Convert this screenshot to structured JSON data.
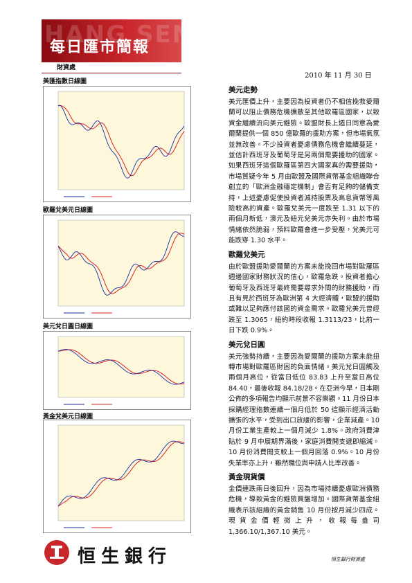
{
  "header": {
    "watermark": "HANG SENG",
    "title": "每日匯市簡報",
    "department": "財資處"
  },
  "date": "2010 年 11 月 30 日",
  "charts": [
    {
      "title": "美匯指數日線圖"
    },
    {
      "title": "歐羅兌美元日線圖"
    },
    {
      "title": "美元兌日圓日線圖"
    },
    {
      "title": "黃金兌美元日線圖"
    }
  ],
  "sections": [
    {
      "heading": "美元走勢",
      "body": "美元匯價上升，主要因為投資者仍不相信挽救愛爾蘭可以阻止債務危機擴散至其他歐羅區國家，以致資金繼續流向美元避險。歐盟財長上週日同意為愛爾蘭提供一個 850 億歐羅的援助方案，但市場氣氛並無改善。不少投資者憂慮債務危機會繼續蔓延，並估計西班牙及葡萄牙是另兩個需要援助的國家。如果西班牙這個歐羅區第四大國家真的需要援助，市場質疑今年 5 月由歐盟及國際貨幣基金組織聯合創立的「歐洲金融穩定機制」會否有足夠的儲備支持，上述憂慮促使投資者減持股票及高息貨幣等風險較高的資產。歐羅兌美元一度跌至 1.31 以下的兩個月新低，澳元及紐元兌美元亦失利。由於市場情緒依然脆弱，預料歐羅會進一步受壓，兌美元可能跌穿 1.30 水平。"
    },
    {
      "heading": "歐羅兌美元",
      "body": "由於歐盟援助愛爾蘭的方案未能挽回市場對歐羅區週邊國家財務狀況的信心，歐羅急跌。投資者擔心葡萄牙及西班牙最終需要尋求外間的財務援助，而且有見於西班牙為歐洲第 4 大經濟體，歐盟的援助或難以足夠應付該國的資金需求。歐羅兌美元曾經跌至 1.3065，紐約時段收報 1.3113/23，比前一日下跌 0.9%。"
    },
    {
      "heading": "美元兌日圓",
      "body": "美元強勢持續，主要因為愛爾蘭的援助方案未能扭轉市場對歐羅區財困的負面情緒。美元兌日圓觸及兩個月高位，從當日低位 83.83 上升至當日高位 84.40，最後收報 84.18/28。在亞洲今早，日本剛公佈的多項報告均顯示前景不容樂觀。11 月份日本採購經理指數連續一個月低於 50 這顯示經濟活動擴張的水平，受到出口放緩的影響，企業減產。10 月份工業生產較上一個月減少 1.8%。政府消費津貼於 9 月中展期界滿後，家庭消費開支遞即縮減。10 月份消費開支較上一個月回落 0.9%。10 月份失業率亦上升，雖然職位與申請人比率改善。"
    },
    {
      "heading": "黃金現貨價",
      "body": "金價連跌兩日後回升，因為市場持續憂慮歐洲債務危機，導致黃金的避險買盤增加。國際貨幣基金組織表示該組織的黃金銷售 10 月份按月減少四成。現貨金價輕微上升，收報每盎司 1,366.10/1,367.10 美元。"
    }
  ],
  "footer": {
    "bank": "恒生銀行",
    "note": "恒生銀行財資處"
  }
}
